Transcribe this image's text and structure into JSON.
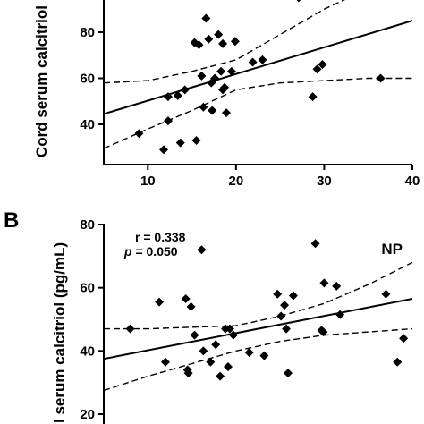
{
  "chart_data": [
    {
      "type": "scatter",
      "panel_letter": "",
      "group_label": "",
      "ylabel": "Cord serum calcitriol",
      "xlabel": "",
      "xlim": [
        5,
        40
      ],
      "ylim": [
        20,
        100
      ],
      "x_ticks": [
        10,
        20,
        30,
        40
      ],
      "y_ticks": [
        40,
        60,
        80
      ],
      "stats": {
        "r_label": "",
        "p_label": ""
      },
      "points": [
        {
          "x": 9,
          "y": 36
        },
        {
          "x": 11.8,
          "y": 29
        },
        {
          "x": 12.3,
          "y": 41.5
        },
        {
          "x": 12.3,
          "y": 52
        },
        {
          "x": 13.4,
          "y": 52.5
        },
        {
          "x": 13.7,
          "y": 32
        },
        {
          "x": 14.2,
          "y": 55
        },
        {
          "x": 15.3,
          "y": 75.5
        },
        {
          "x": 15.5,
          "y": 33
        },
        {
          "x": 15.8,
          "y": 74.5
        },
        {
          "x": 16.1,
          "y": 61
        },
        {
          "x": 16.3,
          "y": 47.5
        },
        {
          "x": 16.6,
          "y": 86
        },
        {
          "x": 16.9,
          "y": 77
        },
        {
          "x": 17.2,
          "y": 58
        },
        {
          "x": 17.3,
          "y": 46
        },
        {
          "x": 17.6,
          "y": 60
        },
        {
          "x": 18.0,
          "y": 79
        },
        {
          "x": 18.3,
          "y": 63
        },
        {
          "x": 18.5,
          "y": 75
        },
        {
          "x": 18.5,
          "y": 55
        },
        {
          "x": 18.7,
          "y": 56
        },
        {
          "x": 18.9,
          "y": 45
        },
        {
          "x": 19.5,
          "y": 63
        },
        {
          "x": 19.9,
          "y": 76
        },
        {
          "x": 21.9,
          "y": 67
        },
        {
          "x": 23.0,
          "y": 68
        },
        {
          "x": 27.1,
          "y": 95
        },
        {
          "x": 28.7,
          "y": 52
        },
        {
          "x": 29.2,
          "y": 64
        },
        {
          "x": 29.8,
          "y": 66
        },
        {
          "x": 36.4,
          "y": 60
        }
      ],
      "regression": {
        "x": [
          5,
          40
        ],
        "y": [
          44.5,
          85
        ]
      },
      "ci_upper": {
        "x": [
          5,
          10,
          15,
          20,
          25,
          30,
          35,
          40
        ],
        "y": [
          58,
          59,
          63,
          68,
          79,
          90,
          99,
          106
        ]
      },
      "ci_lower": {
        "x": [
          5,
          10,
          15,
          20,
          25,
          30,
          35,
          40
        ],
        "y": [
          29.5,
          38,
          46,
          55,
          58,
          59,
          60,
          60
        ]
      }
    },
    {
      "type": "scatter",
      "panel_letter": "B",
      "group_label": "NP",
      "ylabel": "l serum calcitriol (pg/mL)",
      "xlabel": "",
      "xlim": [
        5,
        40
      ],
      "ylim": [
        20,
        80
      ],
      "x_ticks": [],
      "y_ticks": [
        20,
        40,
        60,
        80
      ],
      "stats": {
        "r_label": "r = 0.338",
        "p_label": " = 0.050",
        "p_symbol": "p"
      },
      "points": [
        {
          "x": 8,
          "y": 47
        },
        {
          "x": 11.3,
          "y": 55.5
        },
        {
          "x": 12.0,
          "y": 36.5
        },
        {
          "x": 14.3,
          "y": 56.5
        },
        {
          "x": 14.5,
          "y": 34
        },
        {
          "x": 14.6,
          "y": 33
        },
        {
          "x": 14.9,
          "y": 54
        },
        {
          "x": 15.3,
          "y": 45
        },
        {
          "x": 16.1,
          "y": 72
        },
        {
          "x": 16.3,
          "y": 40
        },
        {
          "x": 17.1,
          "y": 36.5
        },
        {
          "x": 17.7,
          "y": 42
        },
        {
          "x": 18.2,
          "y": 32
        },
        {
          "x": 18.8,
          "y": 47
        },
        {
          "x": 19.1,
          "y": 35
        },
        {
          "x": 19.3,
          "y": 47
        },
        {
          "x": 19.7,
          "y": 45
        },
        {
          "x": 21.5,
          "y": 39.5
        },
        {
          "x": 23.2,
          "y": 38.5
        },
        {
          "x": 24.7,
          "y": 58
        },
        {
          "x": 25.1,
          "y": 51
        },
        {
          "x": 25.5,
          "y": 54.5
        },
        {
          "x": 25.7,
          "y": 47
        },
        {
          "x": 25.9,
          "y": 33
        },
        {
          "x": 26.5,
          "y": 57.5
        },
        {
          "x": 29.0,
          "y": 74
        },
        {
          "x": 29.7,
          "y": 46.5
        },
        {
          "x": 29.9,
          "y": 46
        },
        {
          "x": 30.0,
          "y": 61.5
        },
        {
          "x": 31.4,
          "y": 60.5
        },
        {
          "x": 31.8,
          "y": 51.5
        },
        {
          "x": 37.0,
          "y": 58
        },
        {
          "x": 38.3,
          "y": 36.5
        },
        {
          "x": 39.0,
          "y": 44
        }
      ],
      "regression": {
        "x": [
          5,
          40
        ],
        "y": [
          37.5,
          56.5
        ]
      },
      "ci_upper": {
        "x": [
          5,
          10,
          15,
          20,
          25,
          30,
          35,
          40
        ],
        "y": [
          47,
          47,
          47.5,
          48,
          51,
          55,
          61,
          68
        ]
      },
      "ci_lower": {
        "x": [
          5,
          10,
          15,
          20,
          25,
          30,
          35,
          40
        ],
        "y": [
          27.5,
          32,
          36,
          40,
          43,
          45,
          46,
          47
        ]
      }
    }
  ]
}
